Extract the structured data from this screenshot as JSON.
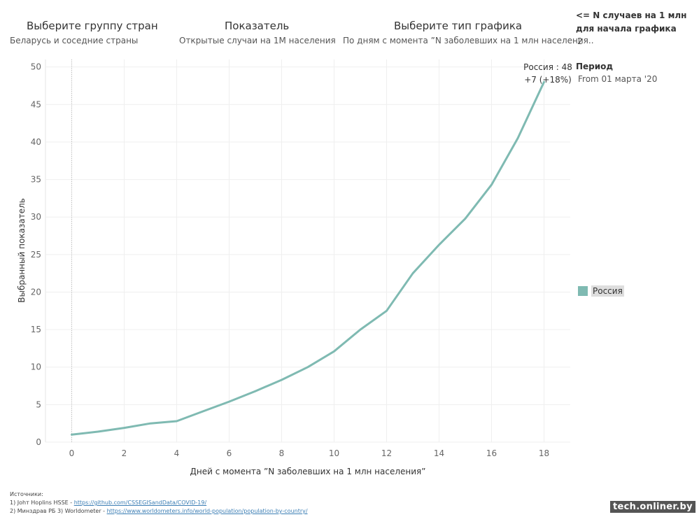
{
  "controls": {
    "group": {
      "title": "Выберите группу стран",
      "value": "Беларусь и соседние страны"
    },
    "indicator": {
      "title": "Показатель",
      "value": "Открытые случаи на 1М населения"
    },
    "chart_type": {
      "title": "Выберите тип графика",
      "value": "По дням с момента ”N заболевших на 1 млн населения.."
    }
  },
  "side": {
    "threshold_title_1": "<= N случаев на 1 млн",
    "threshold_title_2": "для начала графика",
    "threshold_value": "2",
    "period_title": "Период",
    "period_value": "From 01 марта '20"
  },
  "annotation": {
    "line1": "Россия : 48",
    "line2": "+7 (+18%)"
  },
  "sources": {
    "heading": "Источники:",
    "line1_prefix": "1) Johт Hoplins HSSE - ",
    "line1_link": "https://github.com/CSSEGISandData/COVID-19/",
    "line2_prefix": "2) Минздрав РБ     3) Worldometer - ",
    "line2_link": "https://www.worldometers.info/world-population/population-by-country/"
  },
  "watermark": "tech.onliner.by",
  "chart_data": {
    "type": "line",
    "xlabel": "Дней с момента ”N заболевших на 1 млн населения”",
    "ylabel": "Выбранный показатель",
    "xlim": [
      -1,
      19
    ],
    "ylim": [
      0,
      51
    ],
    "xticks": [
      0,
      2,
      4,
      6,
      8,
      10,
      12,
      14,
      16,
      18
    ],
    "yticks": [
      0,
      5,
      10,
      15,
      20,
      25,
      30,
      35,
      40,
      45,
      50
    ],
    "grid": true,
    "legend_position": "right",
    "series": [
      {
        "name": "Россия",
        "color": "#7fbab2",
        "x": [
          0,
          1,
          2,
          3,
          4,
          5,
          6,
          7,
          8,
          9,
          10,
          11,
          12,
          13,
          14,
          15,
          16,
          17,
          18
        ],
        "y": [
          1.0,
          1.4,
          1.9,
          2.5,
          2.8,
          4.1,
          5.4,
          6.8,
          8.3,
          10.0,
          12.1,
          15.0,
          17.5,
          22.5,
          26.3,
          29.8,
          34.3,
          40.5,
          48.0
        ]
      }
    ]
  }
}
